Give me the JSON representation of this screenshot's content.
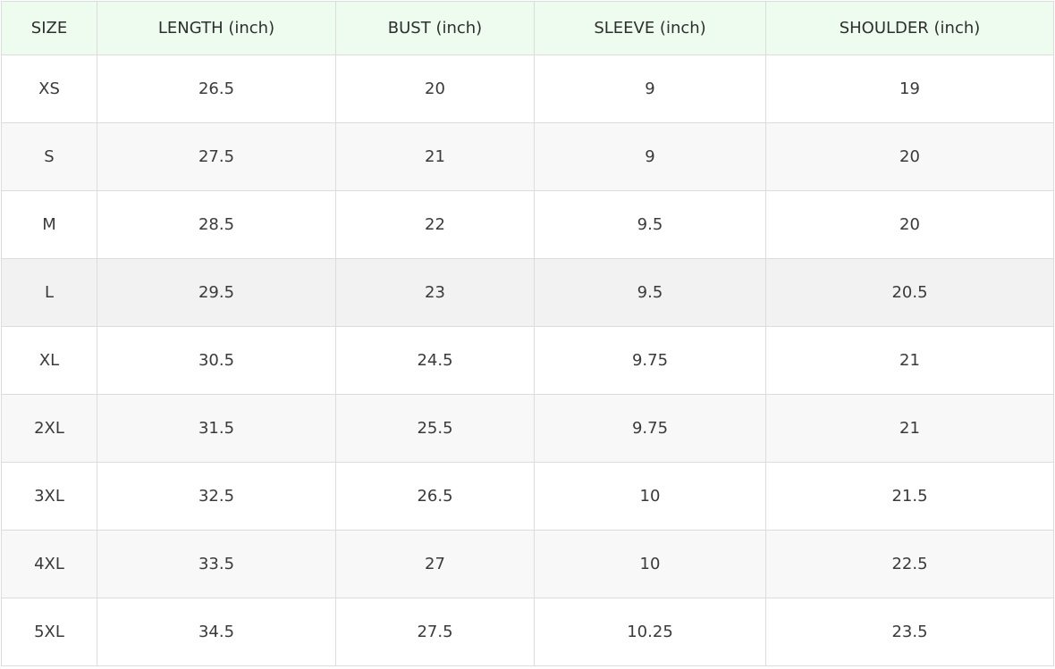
{
  "table": {
    "header": [
      "SIZE",
      "LENGTH (inch)",
      "BUST (inch)",
      "SLEEVE (inch)",
      "SHOULDER (inch)"
    ],
    "rows": [
      [
        "XS",
        "26.5",
        "20",
        "9",
        "19"
      ],
      [
        "S",
        "27.5",
        "21",
        "9",
        "20"
      ],
      [
        "M",
        "28.5",
        "22",
        "9.5",
        "20"
      ],
      [
        "L",
        "29.5",
        "23",
        "9.5",
        "20.5"
      ],
      [
        "XL",
        "30.5",
        "24.5",
        "9.75",
        "21"
      ],
      [
        "2XL",
        "31.5",
        "25.5",
        "9.75",
        "21"
      ],
      [
        "3XL",
        "32.5",
        "26.5",
        "10",
        "21.5"
      ],
      [
        "4XL",
        "33.5",
        "27",
        "10",
        "22.5"
      ],
      [
        "5XL",
        "34.5",
        "27.5",
        "10.25",
        "23.5"
      ]
    ]
  }
}
